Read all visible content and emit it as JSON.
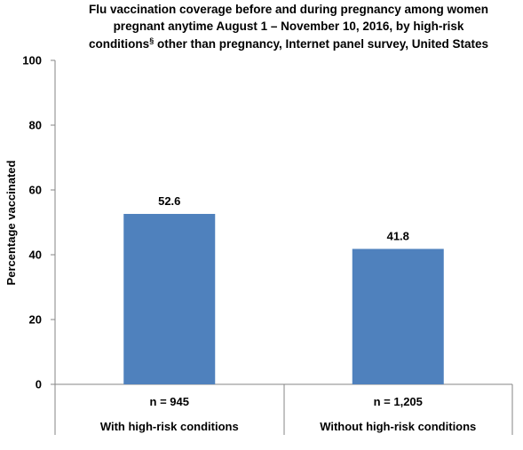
{
  "chart_data": {
    "type": "bar",
    "title_lines": [
      "Flu vaccination coverage before and during pregnancy among women",
      "pregnant anytime August 1 – November 10, 2016, by high-risk",
      "conditions",
      "§",
      " other than pregnancy, Internet panel survey, United States"
    ],
    "ylabel": "Percentage vaccinated",
    "ylim": [
      0,
      100
    ],
    "yticks": [
      "0",
      "20",
      "40",
      "60",
      "80",
      "100"
    ],
    "ytick_values": [
      0,
      20,
      40,
      60,
      80,
      100
    ],
    "categories": [
      "With high-risk conditions",
      "Without high-risk conditions"
    ],
    "sample_sizes": [
      "n = 945",
      "n = 1,205"
    ],
    "values": [
      52.6,
      41.8
    ],
    "value_labels": [
      "52.6",
      "41.8"
    ],
    "bar_color": "#4F81BD",
    "grid": false,
    "legend": "none"
  }
}
